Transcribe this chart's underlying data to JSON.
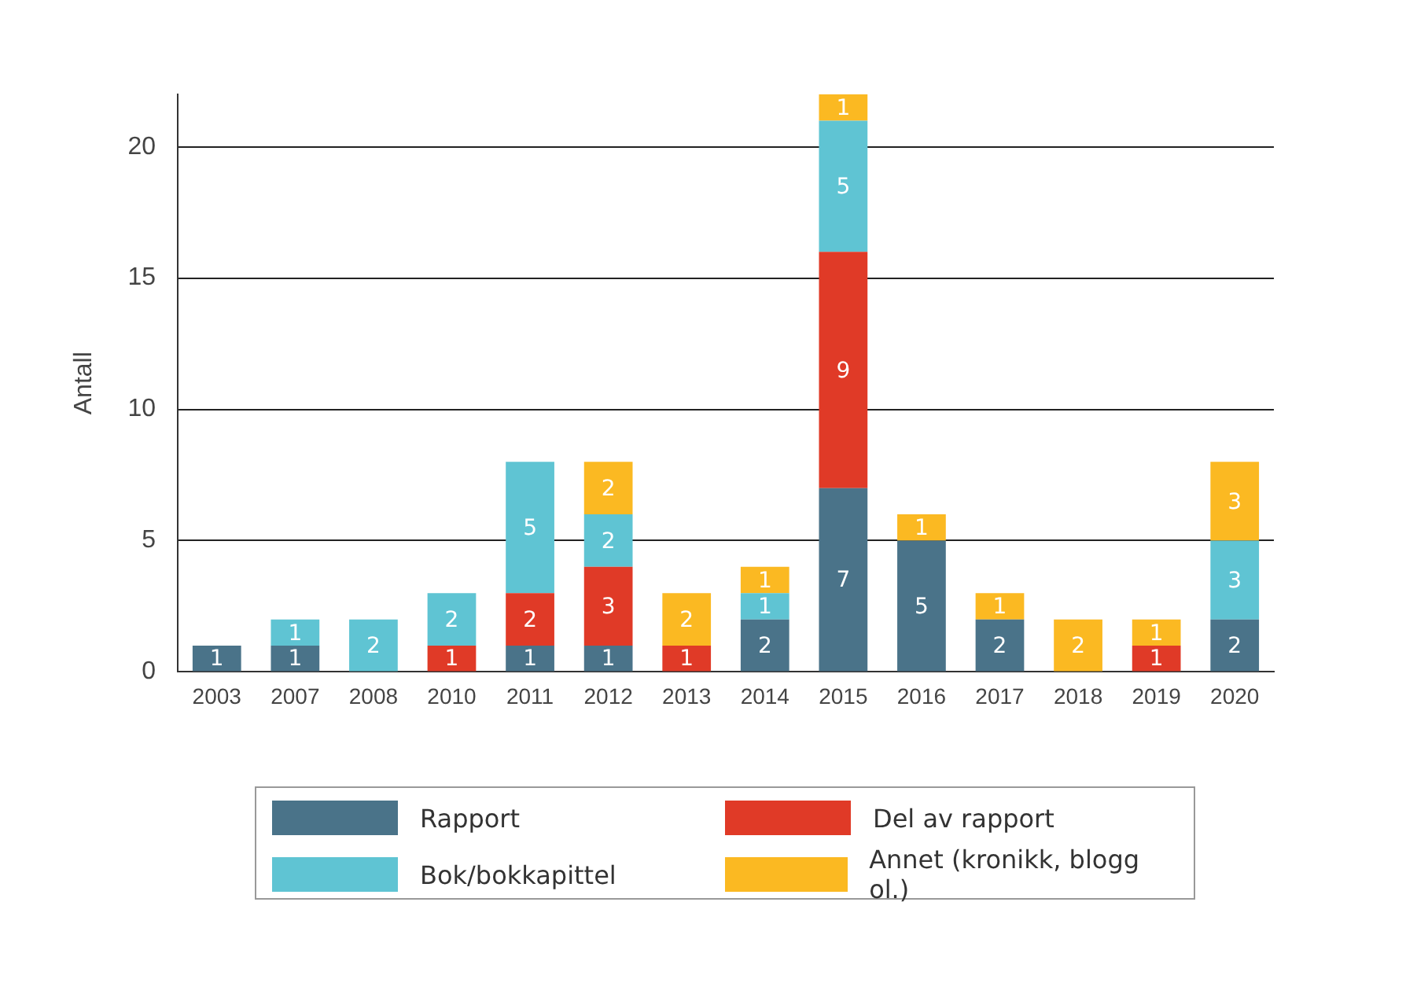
{
  "chart_data": {
    "type": "bar",
    "ylabel": "Antall",
    "stacked": true,
    "categories": [
      "2003",
      "2007",
      "2008",
      "2010",
      "2011",
      "2012",
      "2013",
      "2014",
      "2015",
      "2016",
      "2017",
      "2018",
      "2019",
      "2020"
    ],
    "series": [
      {
        "name": "Rapport",
        "color": "#4a7389",
        "values": [
          1,
          1,
          null,
          null,
          1,
          1,
          null,
          2,
          7,
          5,
          2,
          null,
          null,
          2
        ]
      },
      {
        "name": "Del av rapport",
        "color": "#e03a27",
        "values": [
          null,
          null,
          null,
          1,
          2,
          3,
          1,
          null,
          9,
          null,
          null,
          null,
          1,
          null
        ]
      },
      {
        "name": "Bok/bokkapittel",
        "color": "#5fc4d3",
        "values": [
          null,
          1,
          2,
          2,
          5,
          2,
          null,
          1,
          5,
          null,
          null,
          null,
          null,
          3
        ]
      },
      {
        "name": "Annet (kronikk, blogg ol.)",
        "color": "#fbb922",
        "values": [
          null,
          null,
          null,
          null,
          null,
          2,
          2,
          1,
          1,
          1,
          1,
          2,
          1,
          3
        ]
      }
    ],
    "ylim": [
      0,
      22
    ],
    "yticks": [
      0,
      5,
      10,
      15,
      20
    ],
    "grid": "y",
    "legend": "bottom",
    "data_labels": true
  }
}
